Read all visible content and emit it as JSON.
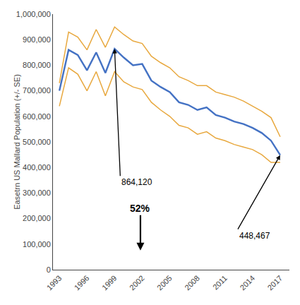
{
  "chart_data": {
    "type": "line",
    "y_label": "Easetrn US Mallard Population (+/- SE)",
    "x": [
      1993,
      1994,
      1995,
      1996,
      1997,
      1998,
      1999,
      2000,
      2001,
      2002,
      2003,
      2004,
      2005,
      2006,
      2007,
      2008,
      2009,
      2010,
      2011,
      2012,
      2013,
      2014,
      2015,
      2016,
      2017
    ],
    "series": [
      {
        "color": "#E8A83E",
        "values": [
          730000,
          930000,
          910000,
          860000,
          940000,
          870000,
          950000,
          920000,
          895000,
          885000,
          835000,
          810000,
          790000,
          755000,
          740000,
          720000,
          720000,
          695000,
          685000,
          675000,
          660000,
          640000,
          620000,
          595000,
          520000
        ]
      },
      {
        "color": "#E8A83E",
        "values": [
          640000,
          790000,
          765000,
          700000,
          775000,
          680000,
          775000,
          735000,
          715000,
          705000,
          655000,
          625000,
          600000,
          565000,
          555000,
          530000,
          540000,
          515000,
          505000,
          490000,
          480000,
          470000,
          450000,
          420000,
          420000
        ]
      },
      {
        "color": "#4472C4",
        "values": [
          700000,
          860000,
          840000,
          780000,
          850000,
          770000,
          864120,
          830000,
          800000,
          805000,
          740000,
          715000,
          695000,
          655000,
          645000,
          625000,
          635000,
          605000,
          595000,
          580000,
          570000,
          555000,
          535000,
          505000,
          448467
        ]
      }
    ],
    "xlim": [
      1992.3,
      2018.0
    ],
    "xticks": [
      1993,
      1996,
      1999,
      2002,
      2005,
      2008,
      2011,
      2014,
      2017
    ],
    "ylim": [
      0,
      1000000
    ],
    "yticks": [
      0,
      {
        "value": 100000,
        "label": "100,000"
      },
      {
        "value": 200000,
        "label": "200,000"
      },
      {
        "value": 300000,
        "label": "300,000"
      },
      {
        "value": 400000,
        "label": "400,000"
      },
      {
        "value": 500000,
        "label": "500,000"
      },
      {
        "value": 600000,
        "label": "600,000"
      },
      {
        "value": 700000,
        "label": "700,000"
      },
      {
        "value": 800000,
        "label": "800,000"
      },
      {
        "value": 900000,
        "label": "900,000"
      },
      {
        "value": 1000000,
        "label": "1,000,000"
      }
    ],
    "grid": false,
    "annotations": [
      {
        "text": "864,120",
        "x": 1999,
        "y": 864120
      },
      {
        "text": "52%"
      },
      {
        "text": "448,467",
        "x": 2017,
        "y": 448467
      }
    ]
  }
}
